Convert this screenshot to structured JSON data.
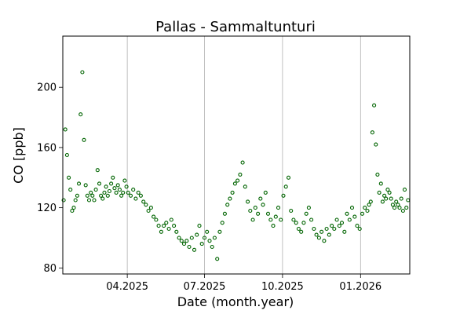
{
  "chart_data": {
    "type": "scatter",
    "title": "Pallas - Sammaltunturi",
    "xlabel": "Date (month.year)",
    "ylabel": "CO [ppb]",
    "x_range": [
      "2025-01-15",
      "2026-02-28"
    ],
    "ylim": [
      76,
      234
    ],
    "xticks": [
      {
        "date": "2025-04-01",
        "label": "04.2025"
      },
      {
        "date": "2025-07-01",
        "label": "07.2025"
      },
      {
        "date": "2025-10-01",
        "label": "10.2025"
      },
      {
        "date": "2026-01-01",
        "label": "01.2026"
      }
    ],
    "yticks": [
      80,
      120,
      160,
      200
    ],
    "grid": "vertical lines at major x ticks",
    "marker": "open circle",
    "color": "#006400",
    "series": [
      {
        "x": [
          "2025-01-16",
          "2025-01-18",
          "2025-01-20",
          "2025-01-22",
          "2025-01-24",
          "2025-01-26",
          "2025-01-28",
          "2025-01-30",
          "2025-02-01",
          "2025-02-03",
          "2025-02-05",
          "2025-02-07",
          "2025-02-09",
          "2025-02-11",
          "2025-02-13",
          "2025-02-15",
          "2025-02-17",
          "2025-02-19",
          "2025-02-21",
          "2025-02-23",
          "2025-02-25",
          "2025-02-27",
          "2025-03-01",
          "2025-03-03",
          "2025-03-05",
          "2025-03-07",
          "2025-03-09",
          "2025-03-11",
          "2025-03-13",
          "2025-03-15",
          "2025-03-17",
          "2025-03-19",
          "2025-03-21",
          "2025-03-23",
          "2025-03-25",
          "2025-03-27",
          "2025-03-29",
          "2025-03-31",
          "2025-04-02",
          "2025-04-05",
          "2025-04-08",
          "2025-04-11",
          "2025-04-14",
          "2025-04-17",
          "2025-04-20",
          "2025-04-23",
          "2025-04-26",
          "2025-04-29",
          "2025-05-02",
          "2025-05-05",
          "2025-05-08",
          "2025-05-11",
          "2025-05-14",
          "2025-05-17",
          "2025-05-20",
          "2025-05-23",
          "2025-05-26",
          "2025-05-29",
          "2025-06-01",
          "2025-06-04",
          "2025-06-07",
          "2025-06-10",
          "2025-06-13",
          "2025-06-16",
          "2025-06-19",
          "2025-06-22",
          "2025-06-25",
          "2025-06-28",
          "2025-07-01",
          "2025-07-04",
          "2025-07-07",
          "2025-07-10",
          "2025-07-13",
          "2025-07-16",
          "2025-07-19",
          "2025-07-22",
          "2025-07-25",
          "2025-07-28",
          "2025-07-31",
          "2025-08-03",
          "2025-08-06",
          "2025-08-09",
          "2025-08-12",
          "2025-08-15",
          "2025-08-18",
          "2025-08-21",
          "2025-08-24",
          "2025-08-27",
          "2025-08-30",
          "2025-09-02",
          "2025-09-05",
          "2025-09-08",
          "2025-09-11",
          "2025-09-14",
          "2025-09-17",
          "2025-09-20",
          "2025-09-23",
          "2025-09-26",
          "2025-09-29",
          "2025-10-02",
          "2025-10-05",
          "2025-10-08",
          "2025-10-11",
          "2025-10-14",
          "2025-10-17",
          "2025-10-20",
          "2025-10-23",
          "2025-10-26",
          "2025-10-29",
          "2025-11-01",
          "2025-11-04",
          "2025-11-07",
          "2025-11-10",
          "2025-11-13",
          "2025-11-16",
          "2025-11-19",
          "2025-11-22",
          "2025-11-25",
          "2025-11-28",
          "2025-12-01",
          "2025-12-04",
          "2025-12-07",
          "2025-12-10",
          "2025-12-13",
          "2025-12-16",
          "2025-12-19",
          "2025-12-22",
          "2025-12-25",
          "2025-12-28",
          "2025-12-31",
          "2026-01-03",
          "2026-01-06",
          "2026-01-09",
          "2026-01-11",
          "2026-01-13",
          "2026-01-15",
          "2026-01-17",
          "2026-01-19",
          "2026-01-21",
          "2026-01-23",
          "2026-01-25",
          "2026-01-27",
          "2026-01-29",
          "2026-01-31",
          "2026-02-02",
          "2026-02-04",
          "2026-02-06",
          "2026-02-08",
          "2026-02-10",
          "2026-02-12",
          "2026-02-14",
          "2026-02-16",
          "2026-02-18",
          "2026-02-20",
          "2026-02-22",
          "2026-02-24",
          "2026-02-26"
        ],
        "y": [
          125,
          172,
          155,
          140,
          132,
          118,
          120,
          125,
          128,
          136,
          182,
          210,
          165,
          135,
          128,
          125,
          130,
          128,
          125,
          132,
          145,
          136,
          128,
          126,
          130,
          134,
          128,
          131,
          136,
          140,
          133,
          130,
          135,
          132,
          128,
          130,
          138,
          134,
          130,
          128,
          132,
          126,
          130,
          128,
          124,
          122,
          118,
          120,
          114,
          112,
          108,
          104,
          108,
          110,
          106,
          112,
          108,
          104,
          100,
          98,
          96,
          98,
          94,
          100,
          92,
          102,
          108,
          96,
          100,
          104,
          98,
          94,
          100,
          86,
          104,
          110,
          116,
          122,
          126,
          130,
          136,
          138,
          142,
          150,
          134,
          124,
          118,
          112,
          120,
          116,
          126,
          122,
          130,
          116,
          112,
          108,
          114,
          120,
          112,
          128,
          134,
          140,
          118,
          112,
          110,
          106,
          104,
          110,
          116,
          120,
          112,
          106,
          102,
          100,
          104,
          98,
          106,
          102,
          108,
          106,
          112,
          108,
          110,
          104,
          116,
          112,
          120,
          114,
          108,
          106,
          116,
          120,
          118,
          122,
          124,
          170,
          188,
          162,
          142,
          130,
          136,
          124,
          128,
          126,
          132,
          130,
          126,
          122,
          120,
          124,
          122,
          120,
          126,
          118,
          132,
          120,
          125
        ]
      }
    ]
  }
}
